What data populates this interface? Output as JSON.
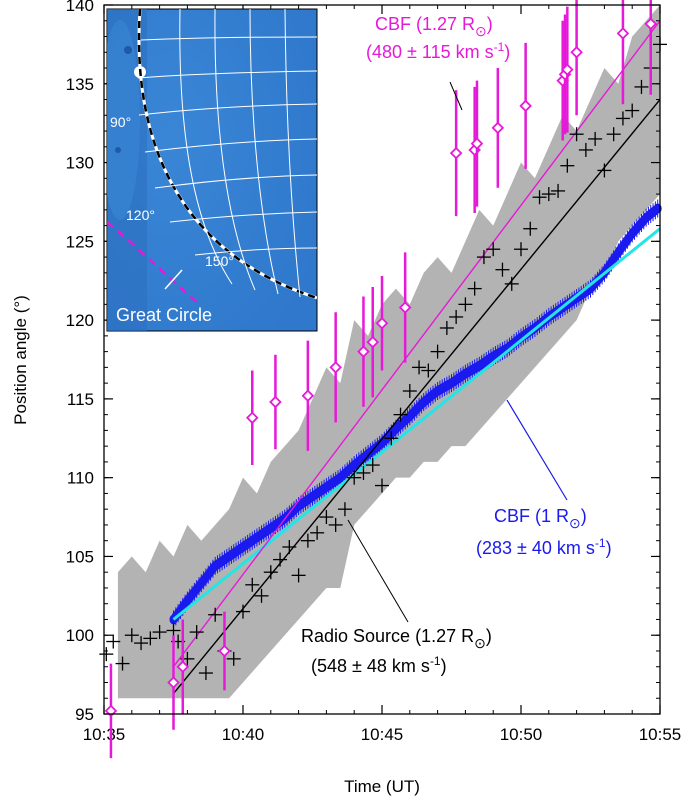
{
  "chart_data": {
    "type": "scatter",
    "xlabel": "Time (UT)",
    "ylabel": "Position angle (°)",
    "xlim": [
      "10:35",
      "10:55"
    ],
    "ylim": [
      95,
      140
    ],
    "x_ticks": [
      "10:35",
      "10:40",
      "10:45",
      "10:50",
      "10:55"
    ],
    "y_ticks": [
      95,
      100,
      105,
      110,
      115,
      120,
      125,
      130,
      135,
      140
    ],
    "grid": false,
    "shaded_band": {
      "x": [
        "10:35:30",
        "10:36:00",
        "10:36:30",
        "10:37:00",
        "10:37:30",
        "10:38:00",
        "10:38:30",
        "10:39:00",
        "10:39:30",
        "10:40:00",
        "10:40:30",
        "10:41:00",
        "10:41:30",
        "10:42:00",
        "10:42:30",
        "10:43:00",
        "10:43:30",
        "10:44:00",
        "10:44:30",
        "10:45:00",
        "10:45:30",
        "10:46:00",
        "10:46:30",
        "10:47:00",
        "10:47:30",
        "10:48:00",
        "10:48:30",
        "10:49:00",
        "10:49:30",
        "10:50:00",
        "10:50:30",
        "10:51:00",
        "10:51:30",
        "10:52:00",
        "10:52:30",
        "10:53:00",
        "10:53:30",
        "10:54:00",
        "10:54:30",
        "10:55:00"
      ],
      "upper": [
        104,
        105,
        104,
        106,
        105,
        107,
        106,
        107,
        108,
        110,
        109,
        111,
        112,
        113,
        115,
        117,
        116,
        120,
        119,
        121,
        122,
        121,
        123,
        124,
        123,
        125,
        127,
        126,
        128,
        130,
        129,
        131,
        133,
        132,
        134,
        136,
        135,
        138,
        139,
        140
      ],
      "lower": [
        96,
        96,
        96,
        96,
        96,
        96,
        96,
        96,
        96,
        97,
        98,
        99,
        100,
        101,
        102,
        103,
        103,
        107,
        108,
        109,
        110,
        110,
        111,
        111,
        112,
        112,
        113,
        114,
        115,
        116,
        117,
        118,
        119,
        120,
        122,
        123,
        125,
        126,
        127,
        128
      ]
    },
    "series": [
      {
        "name": "CBF (1.27 R⊙)",
        "color": "#e619d9",
        "marker": "diamond",
        "x": [
          "10:35:15",
          "10:37:30",
          "10:37:50",
          "10:39:20",
          "10:40:20",
          "10:41:10",
          "10:42:20",
          "10:43:20",
          "10:44:20",
          "10:44:40",
          "10:45:00",
          "10:45:50",
          "10:47:40",
          "10:48:20",
          "10:48:25",
          "10:49:10",
          "10:50:10",
          "10:51:30",
          "10:51:35",
          "10:51:40",
          "10:52:00",
          "10:53:40",
          "10:54:40"
        ],
        "values": [
          95.2,
          97.0,
          98.0,
          99.0,
          113.8,
          114.8,
          115.2,
          117.0,
          118.0,
          118.6,
          119.8,
          120.8,
          130.6,
          130.8,
          131.2,
          132.2,
          133.6,
          135.2,
          135.6,
          135.9,
          137.0,
          138.2,
          138.8
        ],
        "error": [
          3.0,
          3.0,
          3.0,
          2.5,
          3.0,
          3.0,
          3.5,
          3.5,
          3.5,
          3.5,
          3.0,
          3.5,
          4.0,
          4.0,
          4.0,
          3.8,
          4.0,
          3.8,
          3.8,
          4.0,
          4.0,
          4.5,
          4.5
        ]
      },
      {
        "name": "CBF fit 1.27",
        "color": "#e619d9",
        "marker": "line",
        "x": [
          "10:37:30",
          "10:55:00"
        ],
        "values": [
          98.0,
          139.0
        ]
      },
      {
        "name": "Radio Source (1.27 R⊙)",
        "color": "#000000",
        "marker": "plus",
        "x": [
          "10:35:05",
          "10:35:20",
          "10:35:40",
          "10:36:00",
          "10:36:20",
          "10:36:40",
          "10:37:00",
          "10:37:30",
          "10:37:40",
          "10:38:00",
          "10:38:20",
          "10:38:40",
          "10:39:00",
          "10:39:20",
          "10:39:40",
          "10:40:00",
          "10:40:20",
          "10:40:40",
          "10:41:00",
          "10:41:20",
          "10:41:40",
          "10:42:00",
          "10:42:20",
          "10:42:40",
          "10:43:00",
          "10:43:20",
          "10:43:40",
          "10:44:00",
          "10:44:20",
          "10:44:40",
          "10:45:00",
          "10:45:20",
          "10:45:40",
          "10:46:00",
          "10:46:20",
          "10:46:40",
          "10:47:00",
          "10:47:20",
          "10:47:40",
          "10:48:00",
          "10:48:20",
          "10:48:40",
          "10:49:00",
          "10:49:20",
          "10:49:40",
          "10:50:00",
          "10:50:20",
          "10:50:40",
          "10:51:00",
          "10:51:20",
          "10:51:40",
          "10:52:00",
          "10:52:20",
          "10:52:40",
          "10:53:00",
          "10:53:20",
          "10:53:40",
          "10:54:00",
          "10:54:20",
          "10:54:40",
          "10:55:00"
        ],
        "values": [
          98.8,
          99.6,
          98.2,
          100.0,
          99.5,
          99.8,
          100.2,
          100.3,
          99.6,
          98.5,
          100.2,
          97.6,
          101.3,
          99.0,
          98.5,
          101.5,
          103.2,
          102.5,
          104.0,
          104.8,
          105.6,
          103.8,
          106.0,
          106.5,
          107.5,
          107.0,
          108.0,
          110.0,
          110.3,
          110.8,
          109.5,
          112.5,
          114.0,
          115.5,
          117.0,
          116.8,
          118.0,
          119.5,
          120.2,
          121.0,
          122.0,
          124.0,
          124.5,
          123.2,
          122.3,
          124.5,
          125.8,
          127.8,
          128.0,
          128.2,
          129.8,
          131.8,
          130.8,
          131.5,
          129.5,
          131.8,
          132.8,
          133.3,
          134.8,
          136.0,
          137.5
        ]
      },
      {
        "name": "Radio fit",
        "color": "#000000",
        "marker": "line",
        "x": [
          "10:37:30",
          "10:55:00"
        ],
        "values": [
          96.3,
          134.0
        ]
      },
      {
        "name": "CBF (1 R⊙)",
        "color": "#1a1aee",
        "marker": "circle",
        "x": [
          "10:37:30",
          "10:38:00",
          "10:38:30",
          "10:39:00",
          "10:39:30",
          "10:40:00",
          "10:40:30",
          "10:41:00",
          "10:41:30",
          "10:42:00",
          "10:42:30",
          "10:43:00",
          "10:43:30",
          "10:44:00",
          "10:44:30",
          "10:45:00",
          "10:45:30",
          "10:46:00",
          "10:46:30",
          "10:47:00",
          "10:47:30",
          "10:48:00",
          "10:48:30",
          "10:49:00",
          "10:49:30",
          "10:50:00",
          "10:50:30",
          "10:51:00",
          "10:51:30",
          "10:52:00",
          "10:52:30",
          "10:53:00",
          "10:53:30",
          "10:54:00",
          "10:54:30",
          "10:55:00"
        ],
        "values": [
          101.0,
          102.2,
          103.3,
          104.4,
          105.0,
          105.6,
          106.2,
          106.8,
          107.4,
          108.2,
          108.8,
          109.4,
          110.0,
          110.8,
          111.5,
          112.2,
          113.1,
          113.9,
          114.8,
          115.5,
          116.0,
          116.6,
          117.1,
          117.7,
          118.2,
          118.9,
          119.5,
          120.2,
          120.8,
          121.4,
          122.0,
          123.0,
          124.3,
          125.5,
          126.5,
          127.2
        ]
      },
      {
        "name": "CBF fit 1",
        "color": "#22e6e6",
        "marker": "line",
        "x": [
          "10:37:30",
          "10:55:00"
        ],
        "values": [
          101.0,
          125.8
        ]
      }
    ],
    "annotations": {
      "cbf127_label1": "CBF (1.27 R",
      "cbf127_label2": "(480 ± 115 km s",
      "cbf1_label1": "CBF (1 R",
      "cbf1_label2": "(283 ± 40 km s",
      "radio_label1": "Radio Source (1.27 R",
      "radio_label2": "(548 ± 48 km s",
      "sup_minus1": "-1",
      "paren_close": ")",
      "sun_symbol": "⊙"
    },
    "inset": {
      "labels": [
        "90°",
        "120°",
        "150°"
      ],
      "caption": "Great Circle"
    }
  }
}
